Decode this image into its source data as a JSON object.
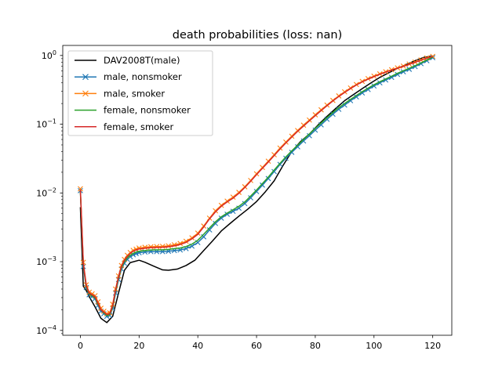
{
  "chart_data": {
    "type": "line",
    "title": "death probabilities (loss: nan)",
    "xlabel": "",
    "ylabel": "",
    "xlim": [
      -6,
      126.5
    ],
    "ylim": [
      8.5e-05,
      1.4
    ],
    "yscale": "log",
    "x_ticks": [
      0,
      20,
      40,
      60,
      80,
      100,
      120
    ],
    "y_ticks": [
      {
        "value": 0.0001,
        "base": "10",
        "exp": "−4"
      },
      {
        "value": 0.001,
        "base": "10",
        "exp": "−3"
      },
      {
        "value": 0.01,
        "base": "10",
        "exp": "−2"
      },
      {
        "value": 0.1,
        "base": "10",
        "exp": "−1"
      },
      {
        "value": 1,
        "base": "10",
        "exp": "0"
      }
    ],
    "grid": false,
    "legend_position": "upper-left",
    "series": [
      {
        "name": "DAV2008T(male)",
        "color": "#000000",
        "marker": "none",
        "x": [
          0,
          1,
          2,
          3,
          5,
          7,
          9,
          11,
          13,
          15,
          17,
          20,
          22,
          25,
          28,
          30,
          33,
          36,
          39,
          42,
          45,
          48,
          51,
          54,
          57,
          60,
          63,
          66,
          69,
          72,
          75,
          78,
          81,
          84,
          87,
          90,
          93,
          96,
          99,
          102,
          105,
          108,
          111,
          114,
          117,
          120
        ],
        "values": [
          0.0062,
          0.00044,
          0.00038,
          0.00031,
          0.00022,
          0.00015,
          0.00013,
          0.00016,
          0.00035,
          0.00075,
          0.00097,
          0.00105,
          0.00098,
          0.00086,
          0.00076,
          0.00075,
          0.00078,
          0.00088,
          0.00105,
          0.00145,
          0.002,
          0.0028,
          0.0036,
          0.0046,
          0.0058,
          0.0075,
          0.0104,
          0.015,
          0.025,
          0.04,
          0.056,
          0.072,
          0.098,
          0.13,
          0.17,
          0.22,
          0.27,
          0.33,
          0.4,
          0.48,
          0.56,
          0.65,
          0.74,
          0.84,
          0.94,
          0.985
        ]
      },
      {
        "name": "male, nonsmoker",
        "color": "#1f77b4",
        "marker": "x",
        "x": [
          0,
          1,
          2,
          3,
          4,
          5,
          6,
          7,
          8,
          9,
          10,
          11,
          12,
          13,
          14,
          15,
          16,
          17,
          18,
          19,
          20,
          22,
          24,
          26,
          28,
          30,
          32,
          34,
          36,
          38,
          40,
          42,
          44,
          46,
          48,
          50,
          52,
          54,
          56,
          58,
          60,
          62,
          64,
          66,
          68,
          70,
          72,
          74,
          76,
          78,
          80,
          82,
          84,
          86,
          88,
          90,
          92,
          94,
          96,
          98,
          100,
          102,
          104,
          106,
          108,
          110,
          112,
          114,
          116,
          118,
          120
        ],
        "values": [
          0.0108,
          0.00085,
          0.00042,
          0.00033,
          0.00031,
          0.00029,
          0.00023,
          0.00019,
          0.000175,
          0.00016,
          0.000165,
          0.00021,
          0.00035,
          0.00055,
          0.00078,
          0.00095,
          0.00108,
          0.00118,
          0.00126,
          0.00131,
          0.00135,
          0.00138,
          0.0014,
          0.0014,
          0.0014,
          0.00142,
          0.00145,
          0.00148,
          0.00155,
          0.00168,
          0.0019,
          0.0023,
          0.0029,
          0.0036,
          0.0043,
          0.0049,
          0.0054,
          0.006,
          0.007,
          0.0085,
          0.0105,
          0.013,
          0.0162,
          0.0205,
          0.026,
          0.032,
          0.039,
          0.047,
          0.057,
          0.068,
          0.082,
          0.098,
          0.118,
          0.14,
          0.165,
          0.19,
          0.22,
          0.25,
          0.285,
          0.32,
          0.36,
          0.4,
          0.44,
          0.48,
          0.53,
          0.58,
          0.63,
          0.69,
          0.76,
          0.84,
          0.93
        ]
      },
      {
        "name": "male, smoker",
        "color": "#ff7f0e",
        "marker": "x",
        "x": [
          0,
          1,
          2,
          3,
          4,
          5,
          6,
          7,
          8,
          9,
          10,
          11,
          12,
          13,
          14,
          15,
          16,
          17,
          18,
          19,
          20,
          22,
          24,
          26,
          28,
          30,
          32,
          34,
          36,
          38,
          40,
          42,
          44,
          46,
          48,
          50,
          52,
          54,
          56,
          58,
          60,
          62,
          64,
          66,
          68,
          70,
          72,
          74,
          76,
          78,
          80,
          82,
          84,
          86,
          88,
          90,
          92,
          94,
          96,
          98,
          100,
          102,
          104,
          106,
          108,
          110,
          112,
          114,
          116,
          118,
          120
        ],
        "values": [
          0.0115,
          0.00098,
          0.00046,
          0.00036,
          0.00034,
          0.00032,
          0.00026,
          0.00021,
          0.00019,
          0.000175,
          0.00018,
          0.00024,
          0.0004,
          0.00062,
          0.00088,
          0.00108,
          0.00124,
          0.00136,
          0.00146,
          0.00152,
          0.00158,
          0.00162,
          0.00165,
          0.00166,
          0.00167,
          0.0017,
          0.00176,
          0.00184,
          0.00198,
          0.00222,
          0.0026,
          0.0033,
          0.0043,
          0.0055,
          0.0066,
          0.0076,
          0.0087,
          0.0102,
          0.0123,
          0.0152,
          0.019,
          0.0235,
          0.029,
          0.036,
          0.045,
          0.055,
          0.067,
          0.081,
          0.097,
          0.115,
          0.137,
          0.162,
          0.19,
          0.222,
          0.258,
          0.296,
          0.336,
          0.378,
          0.42,
          0.46,
          0.5,
          0.54,
          0.58,
          0.62,
          0.66,
          0.7,
          0.75,
          0.8,
          0.86,
          0.92,
          0.97
        ]
      },
      {
        "name": "female, nonsmoker",
        "color": "#2ca02c",
        "marker": "none",
        "x": [
          0,
          1,
          2,
          3,
          4,
          5,
          6,
          7,
          8,
          9,
          10,
          11,
          12,
          13,
          14,
          15,
          16,
          17,
          18,
          19,
          20,
          22,
          24,
          26,
          28,
          30,
          32,
          34,
          36,
          38,
          40,
          42,
          44,
          46,
          48,
          50,
          52,
          54,
          56,
          58,
          60,
          62,
          64,
          66,
          68,
          70,
          72,
          74,
          76,
          78,
          80,
          82,
          84,
          86,
          88,
          90,
          92,
          94,
          96,
          98,
          100,
          102,
          104,
          106,
          108,
          110,
          112,
          114,
          116,
          118,
          120
        ],
        "values": [
          0.0105,
          0.0009,
          0.00043,
          0.00034,
          0.00032,
          0.0003,
          0.00024,
          0.0002,
          0.00018,
          0.000165,
          0.00017,
          0.00022,
          0.00037,
          0.00058,
          0.00082,
          0.001,
          0.00114,
          0.00124,
          0.00132,
          0.00138,
          0.00142,
          0.00145,
          0.00148,
          0.00149,
          0.00149,
          0.00151,
          0.00155,
          0.00158,
          0.00166,
          0.0018,
          0.00205,
          0.0025,
          0.0031,
          0.0038,
          0.0045,
          0.0051,
          0.0057,
          0.0064,
          0.0074,
          0.009,
          0.011,
          0.0137,
          0.017,
          0.0215,
          0.027,
          0.0335,
          0.041,
          0.0495,
          0.06,
          0.072,
          0.087,
          0.104,
          0.125,
          0.148,
          0.174,
          0.2,
          0.23,
          0.262,
          0.298,
          0.335,
          0.375,
          0.415,
          0.455,
          0.5,
          0.55,
          0.6,
          0.65,
          0.71,
          0.78,
          0.86,
          0.95
        ]
      },
      {
        "name": "female, smoker",
        "color": "#d62728",
        "marker": "none",
        "x": [
          0,
          1,
          2,
          3,
          4,
          5,
          6,
          7,
          8,
          9,
          10,
          11,
          12,
          13,
          14,
          15,
          16,
          17,
          18,
          19,
          20,
          22,
          24,
          26,
          28,
          30,
          32,
          34,
          36,
          38,
          40,
          42,
          44,
          46,
          48,
          50,
          52,
          54,
          56,
          58,
          60,
          62,
          64,
          66,
          68,
          70,
          72,
          74,
          76,
          78,
          80,
          82,
          84,
          86,
          88,
          90,
          92,
          94,
          96,
          98,
          100,
          102,
          104,
          106,
          108,
          110,
          112,
          114,
          116,
          118,
          120
        ],
        "values": [
          0.0112,
          0.00095,
          0.00045,
          0.00035,
          0.00033,
          0.00031,
          0.00025,
          0.0002,
          0.000185,
          0.00017,
          0.000175,
          0.00023,
          0.00039,
          0.0006,
          0.00086,
          0.00105,
          0.0012,
          0.00132,
          0.00142,
          0.00148,
          0.00153,
          0.00157,
          0.0016,
          0.00161,
          0.00162,
          0.00165,
          0.0017,
          0.00178,
          0.00191,
          0.00215,
          0.0025,
          0.0032,
          0.0042,
          0.0053,
          0.0064,
          0.0074,
          0.0084,
          0.0099,
          0.012,
          0.0148,
          0.0185,
          0.0228,
          0.0282,
          0.035,
          0.0435,
          0.0535,
          0.065,
          0.079,
          0.094,
          0.112,
          0.133,
          0.158,
          0.186,
          0.218,
          0.253,
          0.29,
          0.33,
          0.372,
          0.413,
          0.453,
          0.493,
          0.533,
          0.573,
          0.613,
          0.653,
          0.693,
          0.743,
          0.795,
          0.855,
          0.915,
          0.965
        ]
      }
    ]
  }
}
